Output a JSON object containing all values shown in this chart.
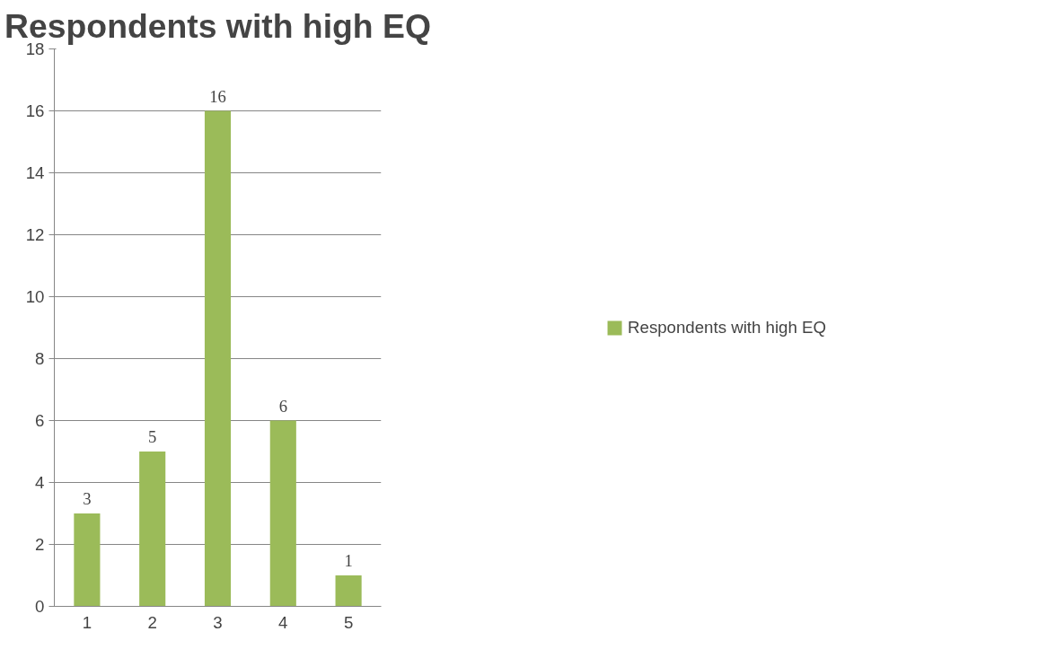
{
  "chart_data": {
    "type": "bar",
    "title": "Respondents with high EQ",
    "categories": [
      "1",
      "2",
      "3",
      "4",
      "5"
    ],
    "series": [
      {
        "name": "Respondents with high EQ",
        "color": "#9bbb59",
        "values": [
          3,
          5,
          16,
          6,
          1
        ]
      }
    ],
    "ylim": [
      0,
      18
    ],
    "yticks": [
      0,
      2,
      4,
      6,
      8,
      10,
      12,
      14,
      16,
      18
    ],
    "grid": "y",
    "legend": "right",
    "data_labels": true
  }
}
